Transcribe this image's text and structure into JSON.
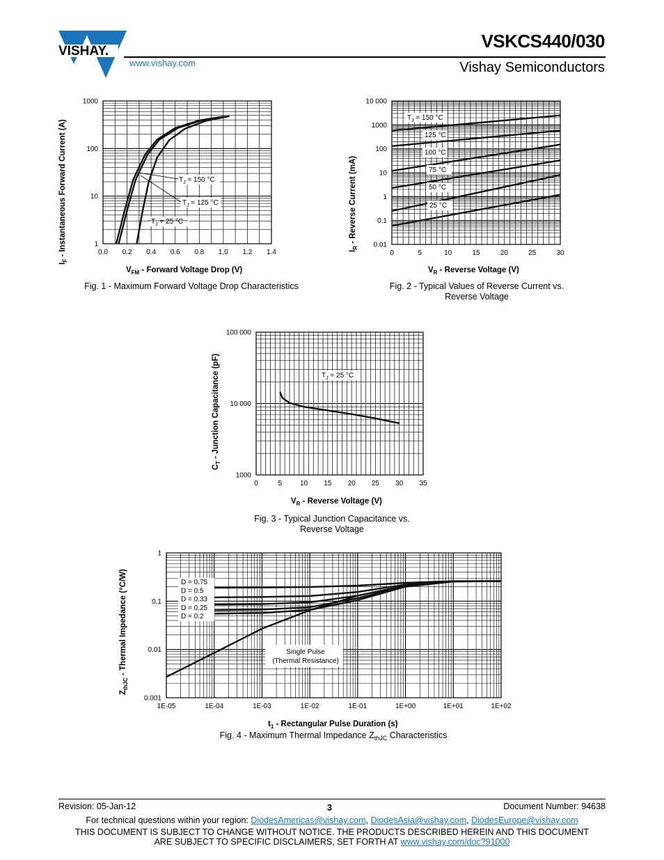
{
  "header": {
    "brand": "VISHAY.",
    "url": "www.vishay.com",
    "part_number": "VSKCS440/030",
    "company": "Vishay Semiconductors"
  },
  "fig1": {
    "caption": "Fig. 1 - Maximum Forward Voltage Drop Characteristics",
    "ylabel_main": "I",
    "ylabel_sub": "F",
    "ylabel_rest": " - Instantaneous Forward Current (A)",
    "xlabel_main": "V",
    "xlabel_sub": "FM",
    "xlabel_rest": " - Forward Voltage Drop (V)",
    "xticks": [
      "0.0",
      "0.2",
      "0.4",
      "0.6",
      "0.8",
      "1.0",
      "1.2",
      "1.4"
    ],
    "yticks": [
      "1",
      "10",
      "100",
      "1000"
    ],
    "labels": [
      {
        "pre": "T",
        "sub": "J",
        "post": " = 150 °C"
      },
      {
        "pre": "T",
        "sub": "J",
        "post": " = 125 °C"
      },
      {
        "pre": "T",
        "sub": "J",
        "post": " = 25 °C"
      }
    ]
  },
  "fig2": {
    "caption_line1": "Fig. 2 - Typical Values of Reverse Current vs.",
    "caption_line2": "Reverse Voltage",
    "ylabel_main": "I",
    "ylabel_sub": "R",
    "ylabel_rest": " - Reverse Current (mA)",
    "xlabel_main": "V",
    "xlabel_sub": "R",
    "xlabel_rest": " - Reverse Voltage (V)",
    "xticks": [
      "0",
      "5",
      "10",
      "15",
      "20",
      "25",
      "30"
    ],
    "yticks": [
      "0.01",
      "0.1",
      "1",
      "10",
      "100",
      "1000",
      "10 000"
    ],
    "labels": [
      {
        "pre": "T",
        "sub": "J",
        "post": " = 150 °C"
      },
      {
        "pre": "125 °C",
        "sub": "",
        "post": ""
      },
      {
        "pre": "100 °C",
        "sub": "",
        "post": ""
      },
      {
        "pre": "75 °C",
        "sub": "",
        "post": ""
      },
      {
        "pre": "50 °C",
        "sub": "",
        "post": ""
      },
      {
        "pre": "25 °C",
        "sub": "",
        "post": ""
      }
    ]
  },
  "fig3": {
    "caption_line1": "Fig. 3 - Typical Junction Capacitance vs.",
    "caption_line2": "Reverse Voltage",
    "ylabel_main": "C",
    "ylabel_sub": "T",
    "ylabel_rest": " - Junction Capacitance (pF)",
    "xlabel_main": "V",
    "xlabel_sub": "R",
    "xlabel_rest": " - Reverse Voltage (V)",
    "xticks": [
      "0",
      "5",
      "10",
      "15",
      "20",
      "25",
      "30",
      "35"
    ],
    "yticks": [
      "1000",
      "10 000",
      "100 000"
    ],
    "label": {
      "pre": "T",
      "sub": "J",
      "post": " = 25 °C"
    }
  },
  "fig4": {
    "caption_pre": "Fig. 4 - Maximum Thermal Impedance Z",
    "caption_sub": "thJC",
    "caption_post": " Characteristics",
    "ylabel_main": "Z",
    "ylabel_sub": "thJC",
    "ylabel_rest": " - Thermal Impedance (°C/W)",
    "xlabel_main": "t",
    "xlabel_sub": "1",
    "xlabel_rest": " - Rectangular Pulse Duration (s)",
    "xticks": [
      "1E-05",
      "1E-04",
      "1E-03",
      "1E-02",
      "1E-01",
      "1E+00",
      "1E+01",
      "1E+02"
    ],
    "yticks": [
      "0.001",
      "0.01",
      "0.1",
      "1"
    ],
    "duty_labels": [
      "D = 0.75",
      "D = 0.5",
      "D = 0.33",
      "D = 0.25",
      "D = 0.2"
    ],
    "single_pulse_line1": "Single Pulse",
    "single_pulse_line2": "(Thermal Resistance)"
  },
  "chart_data": [
    {
      "type": "line",
      "title": "Fig. 1 - Maximum Forward Voltage Drop Characteristics",
      "xlabel": "VFM - Forward Voltage Drop (V)",
      "ylabel": "IF - Instantaneous Forward Current (A)",
      "xlim": [
        0,
        1.4
      ],
      "ylim": [
        1,
        1000
      ],
      "yscale": "log",
      "grid": true,
      "series": [
        {
          "name": "TJ = 150 °C",
          "x": [
            0.11,
            0.18,
            0.25,
            0.35,
            0.45,
            0.6,
            0.8,
            1.0
          ],
          "y": [
            1,
            5,
            22,
            75,
            155,
            270,
            390,
            470
          ]
        },
        {
          "name": "TJ = 125 °C",
          "x": [
            0.13,
            0.2,
            0.27,
            0.37,
            0.47,
            0.62,
            0.82,
            1.02
          ],
          "y": [
            1,
            5,
            22,
            75,
            155,
            270,
            390,
            470
          ]
        },
        {
          "name": "TJ = 25 °C",
          "x": [
            0.28,
            0.33,
            0.38,
            0.45,
            0.55,
            0.68,
            0.85,
            1.05
          ],
          "y": [
            1,
            5,
            20,
            65,
            150,
            260,
            380,
            480
          ]
        }
      ]
    },
    {
      "type": "line",
      "title": "Fig. 2 - Typical Values of Reverse Current vs. Reverse Voltage",
      "xlabel": "VR - Reverse Voltage (V)",
      "ylabel": "IR - Reverse Current (mA)",
      "xlim": [
        0,
        30
      ],
      "ylim": [
        0.01,
        10000
      ],
      "yscale": "log",
      "grid": true,
      "series": [
        {
          "name": "TJ = 150 °C",
          "x": [
            0,
            30
          ],
          "y": [
            580,
            2500
          ]
        },
        {
          "name": "125 °C",
          "x": [
            0,
            30
          ],
          "y": [
            130,
            580
          ]
        },
        {
          "name": "100 °C",
          "x": [
            0,
            30
          ],
          "y": [
            12,
            150
          ]
        },
        {
          "name": "75 °C",
          "x": [
            0,
            30
          ],
          "y": [
            2.3,
            33
          ]
        },
        {
          "name": "50 °C",
          "x": [
            0,
            30
          ],
          "y": [
            0.25,
            8
          ]
        },
        {
          "name": "25 °C",
          "x": [
            0,
            30
          ],
          "y": [
            0.06,
            1.2
          ]
        }
      ]
    },
    {
      "type": "line",
      "title": "Fig. 3 - Typical Junction Capacitance vs. Reverse Voltage",
      "xlabel": "VR - Reverse Voltage (V)",
      "ylabel": "CT - Junction Capacitance (pF)",
      "xlim": [
        0,
        35
      ],
      "ylim": [
        1000,
        100000
      ],
      "yscale": "log",
      "grid": true,
      "series": [
        {
          "name": "TJ = 25 °C",
          "x": [
            5,
            5.5,
            7,
            10,
            15,
            20,
            25,
            30
          ],
          "y": [
            14500,
            12000,
            10200,
            9000,
            8000,
            7100,
            6200,
            5300
          ]
        }
      ]
    },
    {
      "type": "line",
      "title": "Fig. 4 - Maximum Thermal Impedance ZthJC Characteristics",
      "xlabel": "t1 - Rectangular Pulse Duration (s)",
      "ylabel": "ZthJC - Thermal Impedance (°C/W)",
      "xlim": [
        1e-05,
        100
      ],
      "ylim": [
        0.001,
        1
      ],
      "xscale": "log",
      "yscale": "log",
      "grid": true,
      "series": [
        {
          "name": "D = 0.75",
          "x": [
            0.0001,
            0.001,
            0.01,
            0.1,
            1,
            10,
            100
          ],
          "y": [
            0.19,
            0.192,
            0.197,
            0.21,
            0.24,
            0.26,
            0.26
          ]
        },
        {
          "name": "D = 0.5",
          "x": [
            0.0001,
            0.001,
            0.01,
            0.1,
            1,
            10,
            100
          ],
          "y": [
            0.12,
            0.122,
            0.128,
            0.155,
            0.22,
            0.26,
            0.26
          ]
        },
        {
          "name": "D = 0.33",
          "x": [
            0.0001,
            0.001,
            0.01,
            0.1,
            1,
            10,
            100
          ],
          "y": [
            0.085,
            0.087,
            0.095,
            0.13,
            0.21,
            0.258,
            0.26
          ]
        },
        {
          "name": "D = 0.25",
          "x": [
            0.0001,
            0.001,
            0.01,
            0.1,
            1,
            10,
            100
          ],
          "y": [
            0.065,
            0.067,
            0.075,
            0.115,
            0.205,
            0.256,
            0.26
          ]
        },
        {
          "name": "D = 0.2",
          "x": [
            0.0001,
            0.001,
            0.01,
            0.1,
            1,
            10,
            100
          ],
          "y": [
            0.055,
            0.057,
            0.066,
            0.105,
            0.2,
            0.255,
            0.26
          ]
        },
        {
          "name": "Single Pulse (Thermal Resistance)",
          "x": [
            1e-05,
            0.0001,
            0.001,
            0.01,
            0.1,
            1,
            10,
            100
          ],
          "y": [
            0.0027,
            0.0085,
            0.027,
            0.065,
            0.13,
            0.21,
            0.255,
            0.26
          ]
        }
      ]
    }
  ],
  "footer": {
    "revision": "Revision: 05-Jan-12",
    "page": "3",
    "document_number": "Document Number: 94638",
    "questions": "For technical questions within your region: ",
    "email_americas": "DiodesAmericas@vishay.com",
    "email_asia": "DiodesAsia@vishay.com",
    "email_europe": "DiodesEurope@vishay.com",
    "sep": ", ",
    "disclaimer1": "THIS DOCUMENT IS SUBJECT TO CHANGE WITHOUT NOTICE. THE PRODUCTS DESCRIBED HEREIN AND THIS DOCUMENT",
    "disclaimer2": "ARE SUBJECT TO SPECIFIC DISCLAIMERS, SET FORTH AT ",
    "disclaimer_link": "www.vishay.com/doc?91000"
  }
}
